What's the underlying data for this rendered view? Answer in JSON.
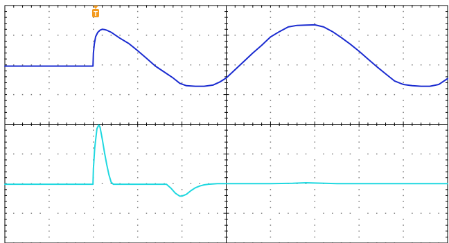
{
  "chart_data": {
    "type": "line",
    "title": "",
    "xlabel": "",
    "ylabel": "",
    "grid": true,
    "graticule": {
      "divisions_x": 10,
      "divisions_y": 8
    },
    "trigger": {
      "marker": "T",
      "icon": "trigger-marker-icon",
      "color": "#f39a1e",
      "x_div": 2.05
    },
    "xlim": [
      0,
      10
    ],
    "series": [
      {
        "color": "#1a2bd0",
        "ylim": [
          0,
          4
        ],
        "x": [
          0,
          0.5,
          1,
          1.5,
          1.99,
          2.0,
          2.02,
          2.05,
          2.1,
          2.15,
          2.2,
          2.25,
          2.3,
          2.4,
          2.5,
          2.6,
          2.8,
          3.0,
          3.2,
          3.4,
          3.6,
          3.8,
          3.95,
          4.1,
          4.3,
          4.5,
          4.7,
          4.85,
          5.0,
          5.2,
          5.4,
          5.6,
          5.8,
          6.0,
          6.2,
          6.4,
          6.6,
          6.8,
          7.0,
          7.2,
          7.4,
          7.6,
          7.8,
          8.0,
          8.2,
          8.4,
          8.6,
          8.8,
          9.0,
          9.2,
          9.4,
          9.6,
          9.8,
          10.0
        ],
        "y": [
          1.96,
          1.96,
          1.96,
          1.96,
          1.96,
          2.4,
          2.7,
          2.95,
          3.1,
          3.17,
          3.2,
          3.19,
          3.17,
          3.1,
          3.0,
          2.9,
          2.72,
          2.48,
          2.22,
          1.96,
          1.76,
          1.56,
          1.38,
          1.3,
          1.28,
          1.28,
          1.32,
          1.42,
          1.56,
          1.84,
          2.12,
          2.4,
          2.66,
          2.94,
          3.12,
          3.28,
          3.33,
          3.34,
          3.35,
          3.28,
          3.12,
          2.92,
          2.7,
          2.46,
          2.2,
          1.94,
          1.7,
          1.46,
          1.34,
          1.3,
          1.28,
          1.28,
          1.34,
          1.54
        ]
      },
      {
        "color": "#1fd8e0",
        "ylim": [
          -4,
          0
        ],
        "x": [
          0,
          0.5,
          1,
          1.5,
          1.99,
          2.0,
          2.03,
          2.08,
          2.12,
          2.15,
          2.2,
          2.25,
          2.3,
          2.35,
          2.4,
          2.45,
          2.5,
          2.6,
          3.0,
          3.5,
          3.65,
          3.75,
          3.85,
          3.95,
          4.0,
          4.1,
          4.2,
          4.3,
          4.4,
          4.5,
          4.6,
          4.8,
          5.0,
          5.5,
          6.0,
          6.5,
          6.8,
          7.0,
          7.5,
          8.0,
          8.5,
          9.0,
          9.5,
          10.0
        ],
        "y": [
          -2.02,
          -2.02,
          -2.02,
          -2.02,
          -2.02,
          -1.5,
          -0.8,
          -0.15,
          -0.02,
          -0.1,
          -0.5,
          -0.95,
          -1.35,
          -1.7,
          -1.95,
          -2.02,
          -2.02,
          -2.02,
          -2.02,
          -2.02,
          -2.02,
          -2.15,
          -2.32,
          -2.42,
          -2.42,
          -2.36,
          -2.24,
          -2.14,
          -2.08,
          -2.04,
          -2.02,
          -2.0,
          -2.0,
          -2.0,
          -2.0,
          -1.99,
          -1.97,
          -1.98,
          -2.0,
          -2.0,
          -2.0,
          -2.0,
          -2.0,
          -2.0
        ]
      }
    ]
  }
}
